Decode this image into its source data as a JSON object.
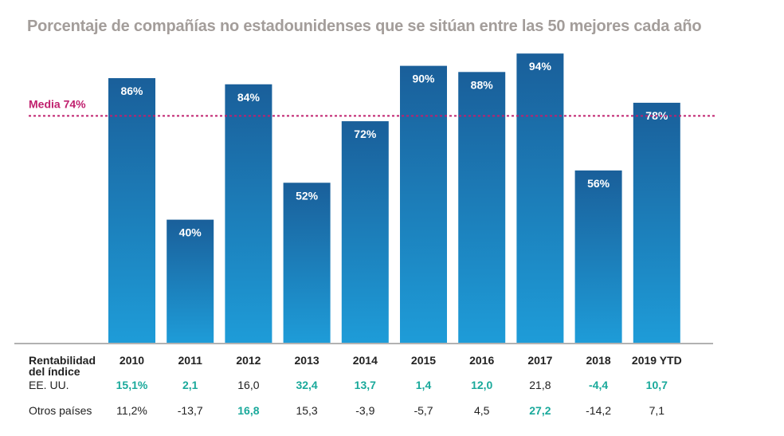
{
  "chart_data": {
    "type": "bar",
    "title": "Porcentaje de compañías no estadounidenses que se sitúan entre las 50 mejores cada año",
    "categories": [
      "2010",
      "2011",
      "2012",
      "2013",
      "2014",
      "2015",
      "2016",
      "2017",
      "2018",
      "2019 YTD"
    ],
    "values": [
      86,
      40,
      84,
      52,
      72,
      90,
      88,
      94,
      56,
      78
    ],
    "data_labels": [
      "86%",
      "40%",
      "84%",
      "52%",
      "72%",
      "90%",
      "88%",
      "94%",
      "56%",
      "78%"
    ],
    "ylim": [
      0,
      100
    ],
    "reference_line": {
      "label": "Media 74%",
      "value": 74,
      "color": "#c0206e"
    },
    "bar_gradient": [
      "#1a5f9a",
      "#1e9cd8"
    ],
    "grid": false
  },
  "table": {
    "header_label_line1": "Rentabilidad",
    "header_label_line2": "del índice",
    "rows": [
      {
        "label": "EE. UU.",
        "values": [
          "15,1%",
          "2,1",
          "16,0",
          "32,4",
          "13,7",
          "1,4",
          "12,0",
          "21,8",
          "-4,4",
          "10,7"
        ],
        "highlight": [
          true,
          true,
          false,
          true,
          true,
          true,
          true,
          false,
          true,
          true
        ]
      },
      {
        "label": "Otros países",
        "values": [
          "11,2%",
          "-13,7",
          "16,8",
          "15,3",
          "-3,9",
          "-5,7",
          "4,5",
          "27,2",
          "-14,2",
          "7,1"
        ],
        "highlight": [
          false,
          false,
          true,
          false,
          false,
          false,
          false,
          true,
          false,
          false
        ]
      }
    ],
    "highlight_color": "#1aa99b"
  }
}
